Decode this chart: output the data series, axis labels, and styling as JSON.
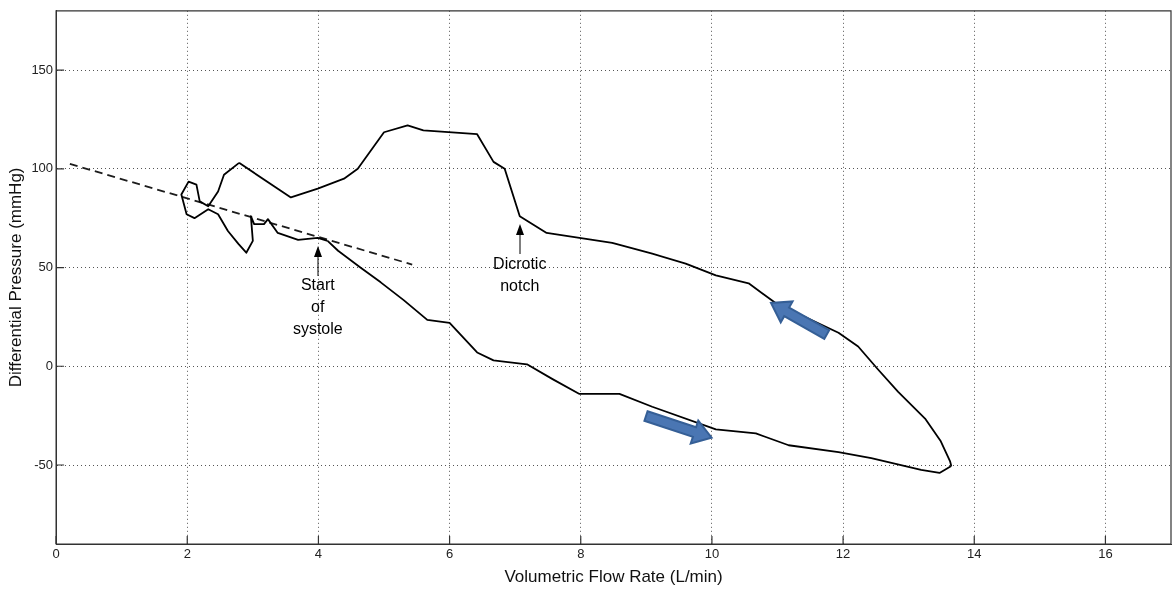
{
  "chart_data": {
    "type": "line",
    "xlabel": "Volumetric Flow Rate (L/min)",
    "ylabel": "Differential Pressure (mmHg)",
    "xlim": [
      0,
      17
    ],
    "xticks": [
      0,
      2,
      4,
      6,
      8,
      10,
      12,
      14,
      16
    ],
    "ylim": [
      -90,
      180
    ],
    "yticks": [
      -50,
      0,
      50,
      100,
      150
    ],
    "grid": true,
    "legend": false,
    "marker": "none",
    "annotations": [
      {
        "text": "Start of systole",
        "x": 3.99,
        "y": 65
      },
      {
        "text": "Dicrotic notch",
        "x": 7.07,
        "y": 76
      }
    ],
    "series": [
      {
        "color": "#000000",
        "line_style": "solid",
        "x": [
          4.14,
          4.3,
          4.64,
          4.95,
          5.3,
          5.66,
          6.0,
          6.42,
          6.67,
          7.18,
          7.57,
          7.98,
          8.59,
          9.09,
          10.06,
          10.67,
          11.17,
          11.93,
          12.43,
          13.19,
          13.47,
          13.65
        ],
        "values": [
          63.5,
          58.5,
          50,
          42.5,
          33.5,
          23.5,
          22,
          7,
          3,
          1,
          -6.5,
          -14,
          -14,
          -20.5,
          -32,
          -34,
          -40,
          -43.5,
          -46.5,
          -52.5,
          -54,
          -50.5
        ]
      },
      {
        "color": "#000000",
        "line_style": "solid",
        "x": [
          2.79,
          3.58,
          3.99,
          4.39,
          4.6,
          5.0,
          5.36,
          5.6,
          6.42,
          6.67,
          6.84,
          7.07,
          7.48,
          7.98,
          8.48,
          9.09,
          9.6,
          10.06,
          10.56,
          10.97,
          11.93,
          12.23,
          12.53,
          12.84,
          13.25,
          13.49,
          13.63,
          13.65
        ],
        "values": [
          103,
          85.5,
          90,
          95,
          100,
          118.5,
          122,
          119.5,
          117.5,
          103.5,
          100,
          76,
          67.5,
          65,
          62.5,
          57,
          52,
          46,
          42,
          32,
          17,
          10,
          -1.5,
          -13,
          -26.5,
          -38,
          -48,
          -50.5
        ]
      },
      {
        "color": "#000000",
        "line_style": "solid",
        "x": [
          2.79,
          2.56,
          2.47,
          2.32,
          2.19,
          2.14,
          2.02,
          1.91,
          1.99,
          2.11,
          2.32,
          2.47,
          2.62,
          2.78,
          2.9,
          3.0,
          2.97,
          3.02,
          3.17,
          3.23,
          3.38,
          3.69,
          3.99,
          4.14
        ],
        "values": [
          103,
          97,
          88.5,
          81,
          83.5,
          92,
          93.5,
          87,
          77,
          75,
          79.5,
          77,
          68.5,
          62,
          57.5,
          63.5,
          76,
          72,
          72,
          74.5,
          67.5,
          64,
          65,
          63.5
        ]
      },
      {
        "type": "line",
        "color": "#1c1c1c",
        "line_style": "dashed",
        "x": [
          0.21,
          5.43
        ],
        "values": [
          102.5,
          51.5
        ]
      }
    ]
  }
}
